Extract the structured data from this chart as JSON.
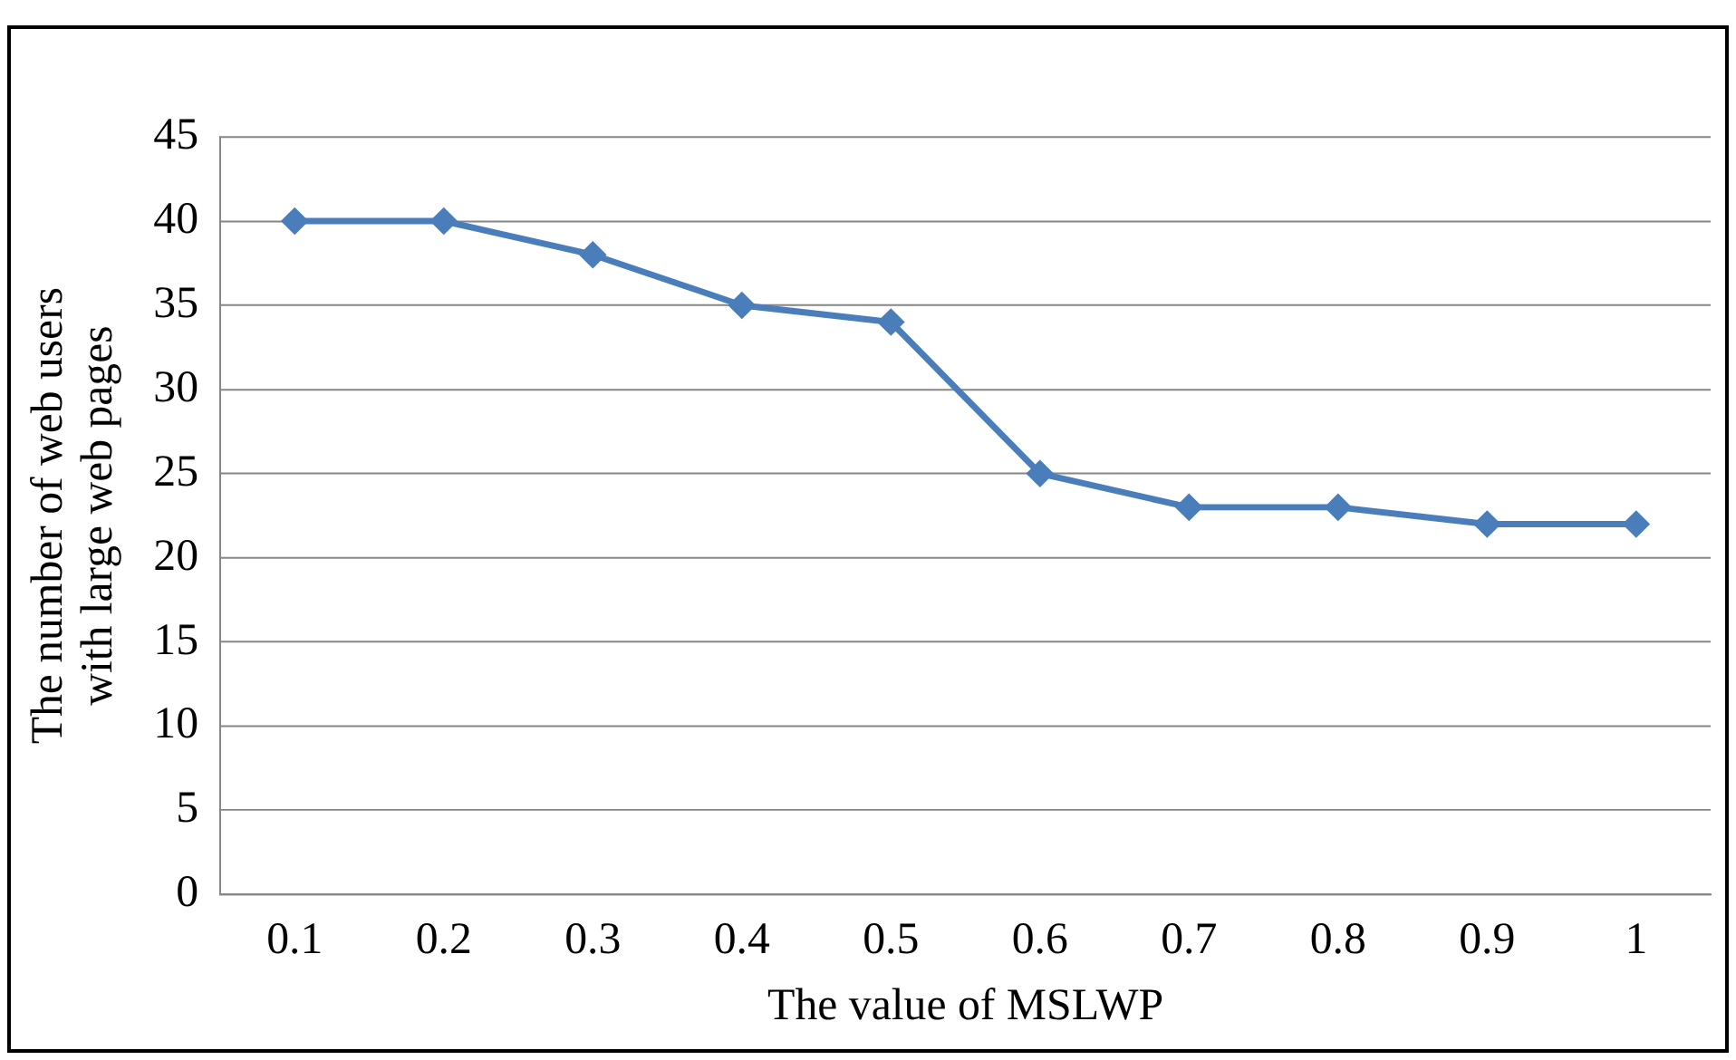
{
  "chart_data": {
    "type": "line",
    "xlabel": "The value of MSLWP",
    "ylabel": "The number of web users\nwith large web pages",
    "categories": [
      "0.1",
      "0.2",
      "0.3",
      "0.4",
      "0.5",
      "0.6",
      "0.7",
      "0.8",
      "0.9",
      "1"
    ],
    "series": [
      {
        "color": "#4a7ebb",
        "values": [
          40,
          40,
          38,
          35,
          34,
          25,
          23,
          23,
          22,
          22
        ]
      }
    ],
    "ylim": [
      0,
      45
    ],
    "yticks": [
      0,
      5,
      10,
      15,
      20,
      25,
      30,
      35,
      40,
      45
    ],
    "grid": "y",
    "legend": false,
    "marker": "diamond",
    "line_style": "solid"
  }
}
